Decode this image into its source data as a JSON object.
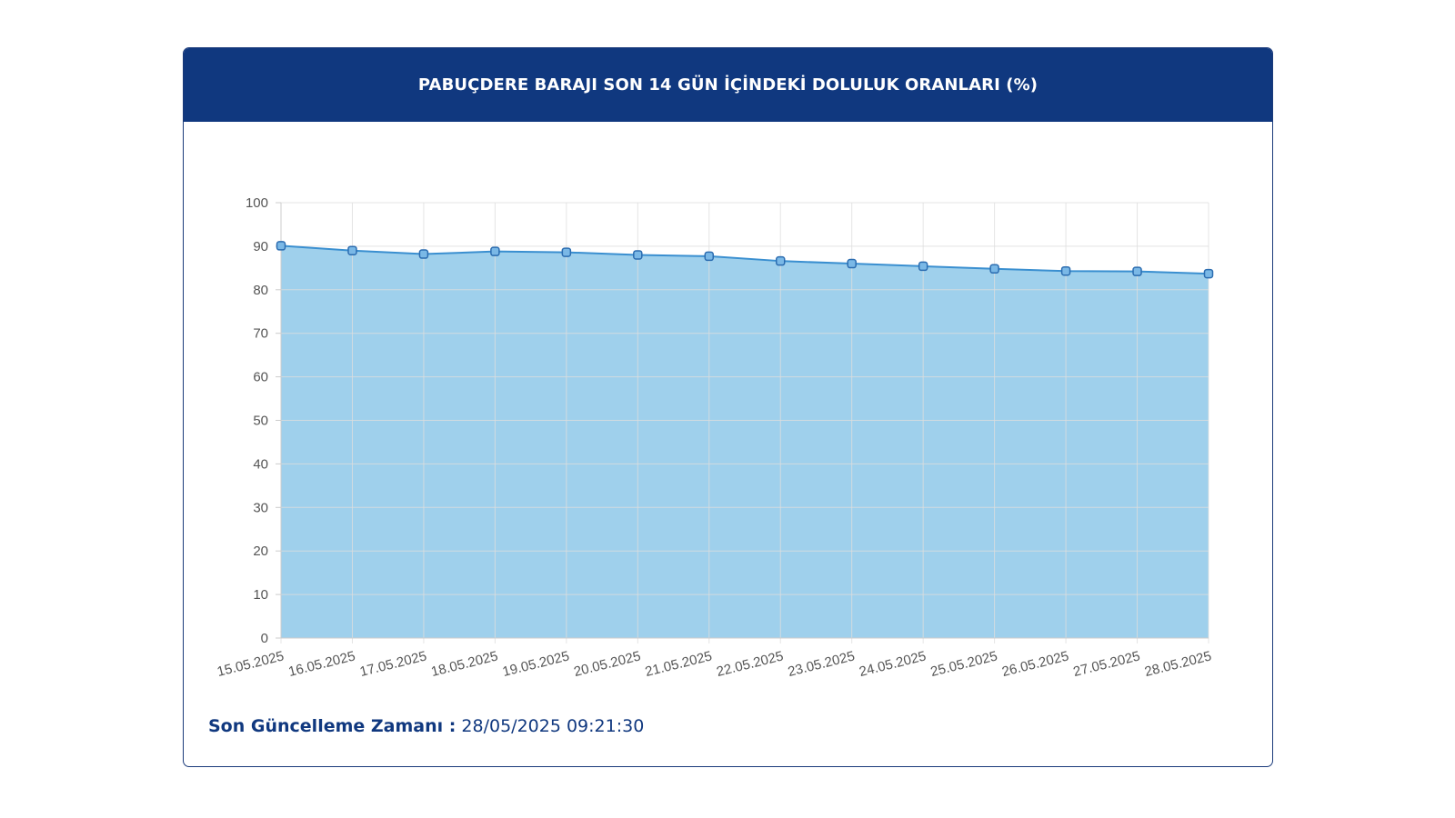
{
  "header": {
    "title": "PABUÇDERE BARAJI SON 14 GÜN İÇİNDEKİ DOLULUK ORANLARI (%)"
  },
  "footer": {
    "label": "Son Güncelleme Zamanı :",
    "value": "28/05/2025 09:21:30"
  },
  "colors": {
    "header_bg": "#10387f",
    "area_fill": "#9fd0ec",
    "line": "#3a8fd0",
    "grid": "#dddddd"
  },
  "chart_data": {
    "type": "area",
    "title": "PABUÇDERE BARAJI SON 14 GÜN İÇİNDEKİ DOLULUK ORANLARI (%)",
    "categories": [
      "15.05.2025",
      "16.05.2025",
      "17.05.2025",
      "18.05.2025",
      "19.05.2025",
      "20.05.2025",
      "21.05.2025",
      "22.05.2025",
      "23.05.2025",
      "24.05.2025",
      "25.05.2025",
      "26.05.2025",
      "27.05.2025",
      "28.05.2025"
    ],
    "values": [
      90.1,
      89.0,
      88.2,
      88.8,
      88.6,
      88.0,
      87.7,
      86.6,
      86.0,
      85.4,
      84.8,
      84.3,
      84.2,
      83.7
    ],
    "y_ticks": [
      0,
      10,
      20,
      30,
      40,
      50,
      60,
      70,
      80,
      90,
      100
    ],
    "ylim": [
      0,
      100
    ],
    "grid": true,
    "legend": "none"
  }
}
